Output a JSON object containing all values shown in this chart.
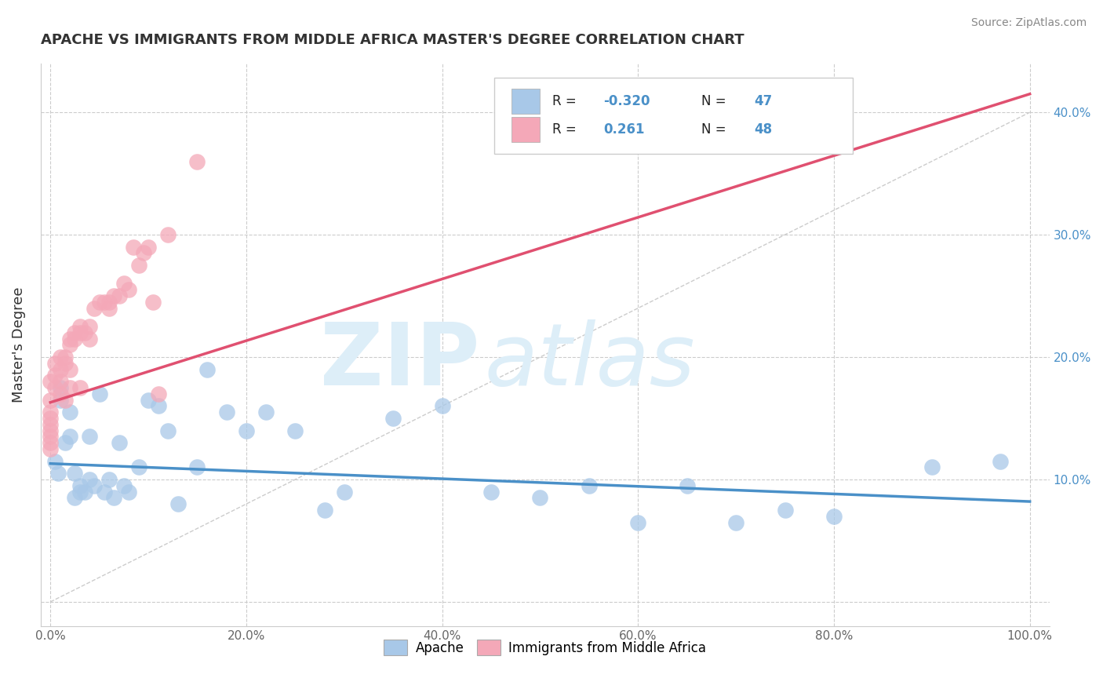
{
  "title": "APACHE VS IMMIGRANTS FROM MIDDLE AFRICA MASTER'S DEGREE CORRELATION CHART",
  "source": "Source: ZipAtlas.com",
  "ylabel": "Master's Degree",
  "xlim": [
    -0.01,
    1.02
  ],
  "ylim": [
    -0.02,
    0.44
  ],
  "xticks": [
    0.0,
    0.2,
    0.4,
    0.6,
    0.8,
    1.0
  ],
  "yticks": [
    0.0,
    0.1,
    0.2,
    0.3,
    0.4
  ],
  "xtick_labels": [
    "0.0%",
    "20.0%",
    "40.0%",
    "60.0%",
    "80.0%",
    "100.0%"
  ],
  "right_ytick_labels": [
    "",
    "10.0%",
    "20.0%",
    "30.0%",
    "40.0%"
  ],
  "apache_color": "#a8c8e8",
  "immigrants_color": "#f4a8b8",
  "apache_line_color": "#4a90c8",
  "immigrants_line_color": "#e05070",
  "watermark_zip": "ZIP",
  "watermark_atlas": "atlas",
  "watermark_color": "#ddeef8",
  "background": "#ffffff",
  "grid_color": "#cccccc",
  "title_color": "#333333",
  "apache_scatter_x": [
    0.005,
    0.008,
    0.01,
    0.01,
    0.015,
    0.02,
    0.02,
    0.025,
    0.025,
    0.03,
    0.03,
    0.035,
    0.04,
    0.04,
    0.045,
    0.05,
    0.055,
    0.06,
    0.065,
    0.07,
    0.075,
    0.08,
    0.09,
    0.1,
    0.11,
    0.12,
    0.13,
    0.15,
    0.16,
    0.18,
    0.2,
    0.22,
    0.25,
    0.28,
    0.3,
    0.35,
    0.4,
    0.45,
    0.5,
    0.55,
    0.6,
    0.65,
    0.7,
    0.75,
    0.8,
    0.9,
    0.97
  ],
  "apache_scatter_y": [
    0.115,
    0.105,
    0.175,
    0.165,
    0.13,
    0.155,
    0.135,
    0.085,
    0.105,
    0.09,
    0.095,
    0.09,
    0.135,
    0.1,
    0.095,
    0.17,
    0.09,
    0.1,
    0.085,
    0.13,
    0.095,
    0.09,
    0.11,
    0.165,
    0.16,
    0.14,
    0.08,
    0.11,
    0.19,
    0.155,
    0.14,
    0.155,
    0.14,
    0.075,
    0.09,
    0.15,
    0.16,
    0.09,
    0.085,
    0.095,
    0.065,
    0.095,
    0.065,
    0.075,
    0.07,
    0.11,
    0.115
  ],
  "immigrants_scatter_x": [
    0.0,
    0.0,
    0.0,
    0.0,
    0.0,
    0.0,
    0.0,
    0.0,
    0.0,
    0.005,
    0.005,
    0.005,
    0.01,
    0.01,
    0.01,
    0.01,
    0.015,
    0.015,
    0.015,
    0.02,
    0.02,
    0.02,
    0.02,
    0.025,
    0.025,
    0.03,
    0.03,
    0.03,
    0.035,
    0.04,
    0.04,
    0.045,
    0.05,
    0.055,
    0.06,
    0.06,
    0.065,
    0.07,
    0.075,
    0.08,
    0.085,
    0.09,
    0.095,
    0.1,
    0.105,
    0.11,
    0.12,
    0.15
  ],
  "immigrants_scatter_y": [
    0.165,
    0.155,
    0.15,
    0.145,
    0.14,
    0.135,
    0.13,
    0.125,
    0.18,
    0.195,
    0.185,
    0.175,
    0.2,
    0.19,
    0.18,
    0.17,
    0.2,
    0.195,
    0.165,
    0.215,
    0.21,
    0.19,
    0.175,
    0.22,
    0.215,
    0.225,
    0.22,
    0.175,
    0.22,
    0.225,
    0.215,
    0.24,
    0.245,
    0.245,
    0.245,
    0.24,
    0.25,
    0.25,
    0.26,
    0.255,
    0.29,
    0.275,
    0.285,
    0.29,
    0.245,
    0.17,
    0.3,
    0.36
  ],
  "apache_trend_x": [
    0.0,
    1.0
  ],
  "apache_trend_y": [
    0.113,
    0.082
  ],
  "immigrants_trend_x": [
    0.0,
    1.0
  ],
  "immigrants_trend_y": [
    0.163,
    0.415
  ]
}
